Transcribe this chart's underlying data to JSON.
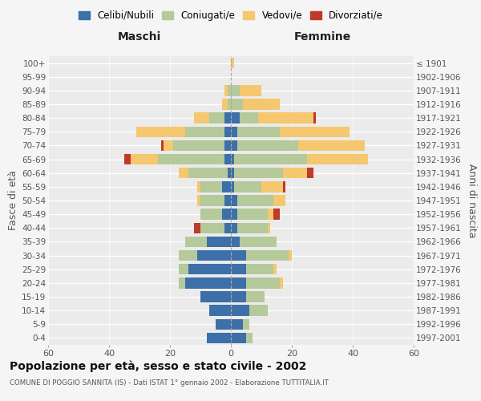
{
  "age_groups": [
    "0-4",
    "5-9",
    "10-14",
    "15-19",
    "20-24",
    "25-29",
    "30-34",
    "35-39",
    "40-44",
    "45-49",
    "50-54",
    "55-59",
    "60-64",
    "65-69",
    "70-74",
    "75-79",
    "80-84",
    "85-89",
    "90-94",
    "95-99",
    "100+"
  ],
  "birth_years": [
    "1997-2001",
    "1992-1996",
    "1987-1991",
    "1982-1986",
    "1977-1981",
    "1972-1976",
    "1967-1971",
    "1962-1966",
    "1957-1961",
    "1952-1956",
    "1947-1951",
    "1942-1946",
    "1937-1941",
    "1932-1936",
    "1927-1931",
    "1922-1926",
    "1917-1921",
    "1912-1916",
    "1907-1911",
    "1902-1906",
    "≤ 1901"
  ],
  "maschi_celibi": [
    8,
    5,
    7,
    10,
    15,
    14,
    11,
    8,
    2,
    3,
    2,
    3,
    1,
    2,
    2,
    2,
    2,
    0,
    0,
    0,
    0
  ],
  "maschi_coniugati": [
    0,
    0,
    0,
    0,
    2,
    3,
    6,
    7,
    8,
    7,
    8,
    7,
    13,
    22,
    17,
    13,
    5,
    1,
    1,
    0,
    0
  ],
  "maschi_vedovi": [
    0,
    0,
    0,
    0,
    0,
    0,
    0,
    0,
    0,
    0,
    1,
    1,
    3,
    9,
    3,
    16,
    5,
    2,
    1,
    0,
    0
  ],
  "maschi_divorziati": [
    0,
    0,
    0,
    0,
    0,
    0,
    0,
    0,
    2,
    0,
    0,
    0,
    0,
    2,
    1,
    0,
    0,
    0,
    0,
    0,
    0
  ],
  "femmine_celibi": [
    5,
    4,
    6,
    5,
    5,
    5,
    5,
    3,
    2,
    2,
    2,
    1,
    1,
    1,
    2,
    2,
    3,
    0,
    0,
    0,
    0
  ],
  "femmine_coniugati": [
    2,
    2,
    6,
    6,
    11,
    9,
    14,
    12,
    10,
    10,
    12,
    9,
    16,
    24,
    20,
    14,
    6,
    4,
    3,
    0,
    0
  ],
  "femmine_vedovi": [
    0,
    0,
    0,
    0,
    1,
    1,
    1,
    0,
    1,
    2,
    4,
    7,
    8,
    20,
    22,
    23,
    18,
    12,
    7,
    0,
    1
  ],
  "femmine_divorziati": [
    0,
    0,
    0,
    0,
    0,
    0,
    0,
    0,
    0,
    2,
    0,
    1,
    2,
    0,
    0,
    0,
    1,
    0,
    0,
    0,
    0
  ],
  "color_celibi": "#3d6fa8",
  "color_coniugati": "#b5c99a",
  "color_vedovi": "#f5c76e",
  "color_divorziati": "#c0392b",
  "xlim": 60,
  "title": "Popolazione per età, sesso e stato civile - 2002",
  "subtitle": "COMUNE DI POGGIO SANNITA (IS) - Dati ISTAT 1° gennaio 2002 - Elaborazione TUTTITALIA.IT",
  "ylabel_left": "Fasce di età",
  "ylabel_right": "Anni di nascita",
  "xlabel_maschi": "Maschi",
  "xlabel_femmine": "Femmine",
  "legend_labels": [
    "Celibi/Nubili",
    "Coniugati/e",
    "Vedovi/e",
    "Divorziati/e"
  ],
  "bg_color": "#f5f5f5",
  "plot_bg": "#ebebeb"
}
